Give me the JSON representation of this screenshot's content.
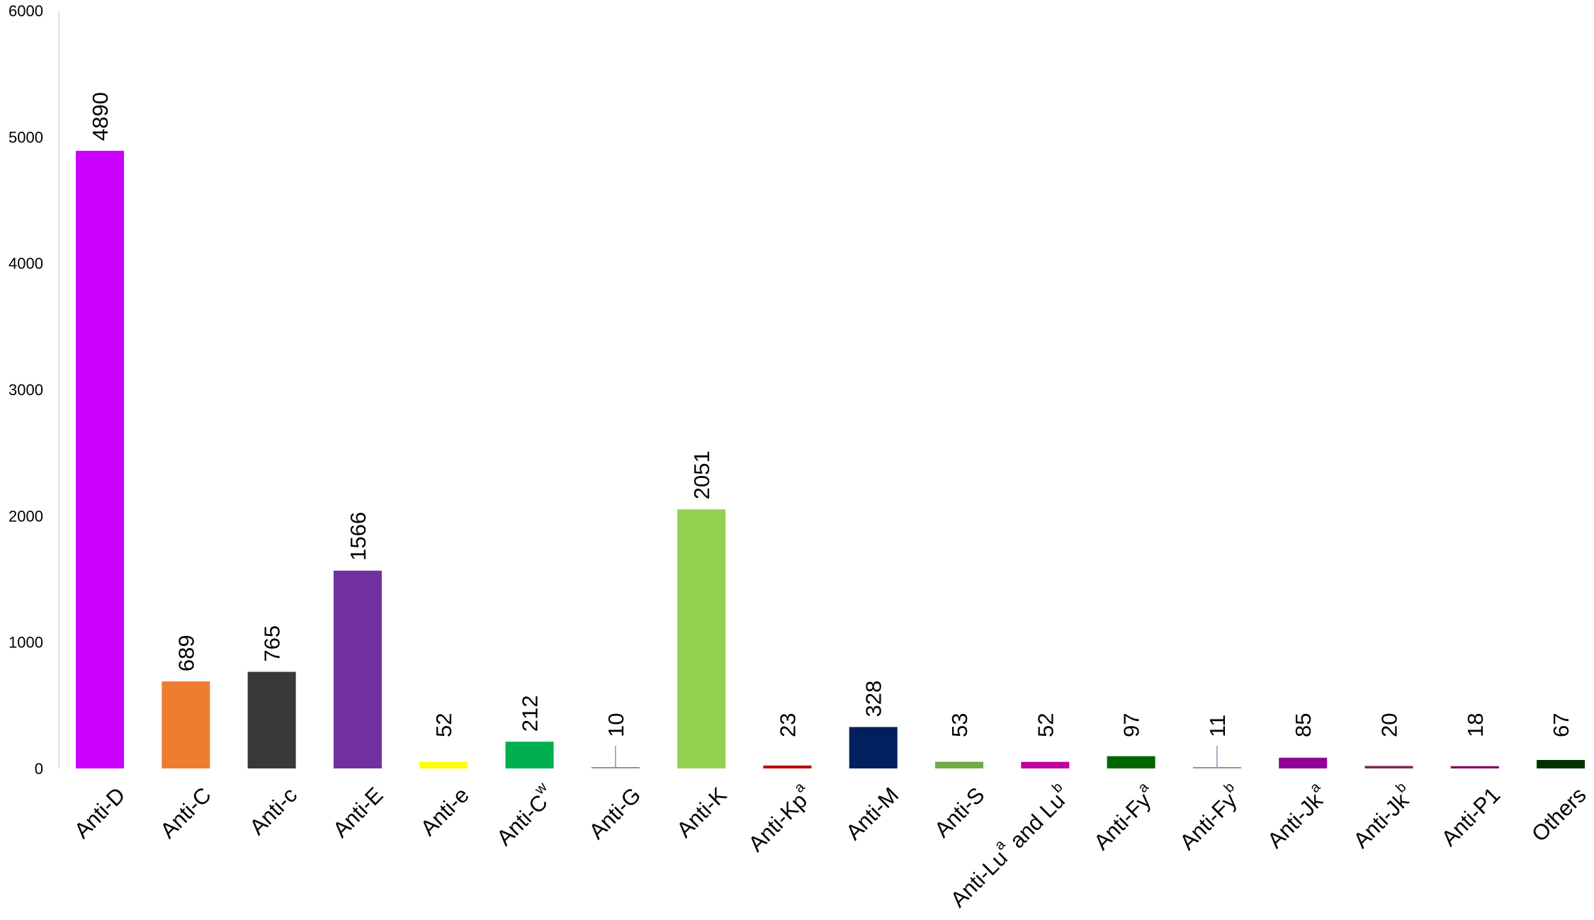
{
  "chart_data": {
    "type": "bar",
    "title": "",
    "xlabel": "",
    "ylabel": "",
    "ylim": [
      0,
      6000
    ],
    "yticks": [
      0,
      1000,
      2000,
      3000,
      4000,
      5000,
      6000
    ],
    "grid": false,
    "legend": "none",
    "categories": [
      {
        "text": "Anti-D",
        "sup": ""
      },
      {
        "text": "Anti-C",
        "sup": ""
      },
      {
        "text": "Anti-c",
        "sup": ""
      },
      {
        "text": "Anti-E",
        "sup": ""
      },
      {
        "text": "Anti-e",
        "sup": ""
      },
      {
        "text": "Anti-C",
        "sup": "w"
      },
      {
        "text": "Anti-G",
        "sup": ""
      },
      {
        "text": "Anti-K",
        "sup": ""
      },
      {
        "text": "Anti-Kp",
        "sup": "a"
      },
      {
        "text": "Anti-M",
        "sup": ""
      },
      {
        "text": "Anti-S",
        "sup": ""
      },
      {
        "text": "Anti-Lu",
        "sup": "a",
        "rest": " and Lu",
        "sup2": "b"
      },
      {
        "text": "Anti-Fy",
        "sup": "a"
      },
      {
        "text": "Anti-Fy",
        "sup": "b"
      },
      {
        "text": "Anti-Jk",
        "sup": "a"
      },
      {
        "text": "Anti-Jk",
        "sup": "b"
      },
      {
        "text": "Anti-P1",
        "sup": ""
      },
      {
        "text": "Others",
        "sup": ""
      }
    ],
    "values": [
      4890,
      689,
      765,
      1566,
      52,
      212,
      10,
      2051,
      23,
      328,
      53,
      52,
      97,
      11,
      85,
      20,
      18,
      67
    ],
    "data_labels": [
      "4890",
      "689",
      "765",
      "1566",
      "52",
      "212",
      "10",
      "2051",
      "23",
      "328",
      "53",
      "52",
      "97",
      "11",
      "85",
      "20",
      "18",
      "67"
    ],
    "colors": [
      "#cc00ff",
      "#ed7d31",
      "#3a3838",
      "#7030a0",
      "#ffff00",
      "#00b050",
      "#8497b0",
      "#92d050",
      "#c00000",
      "#002060",
      "#70ad47",
      "#c000a0",
      "#006600",
      "#8497b0",
      "#8e0096",
      "#7b2c5a",
      "#800060",
      "#003300"
    ]
  }
}
